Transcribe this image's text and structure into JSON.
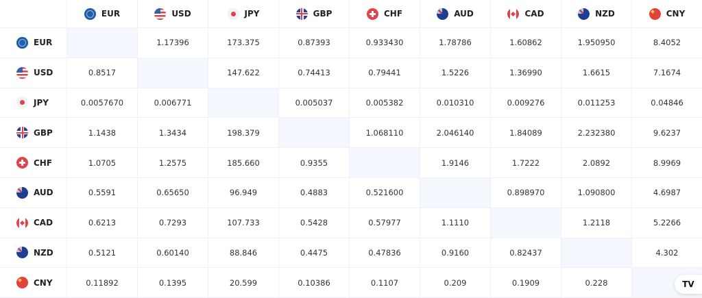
{
  "currencies": [
    "EUR",
    "USD",
    "JPY",
    "GBP",
    "CHF",
    "AUD",
    "CAD",
    "NZD",
    "CNY"
  ],
  "rows": [
    [
      "",
      "1.17396",
      "173.375",
      "0.87393",
      "0.933430",
      "1.78786",
      "1.60862",
      "1.950950",
      "8.4052"
    ],
    [
      "0.8517",
      "",
      "147.622",
      "0.74413",
      "0.79441",
      "1.5226",
      "1.36990",
      "1.6615",
      "7.1674"
    ],
    [
      "0.0057670",
      "0.006771",
      "",
      "0.005037",
      "0.005382",
      "0.010310",
      "0.009276",
      "0.011253",
      "0.04846"
    ],
    [
      "1.1438",
      "1.3434",
      "198.379",
      "",
      "1.068110",
      "2.046140",
      "1.84089",
      "2.232380",
      "9.6237"
    ],
    [
      "1.0705",
      "1.2575",
      "185.660",
      "0.9355",
      "",
      "1.9146",
      "1.7222",
      "2.0892",
      "8.9969"
    ],
    [
      "0.5591",
      "0.65650",
      "96.949",
      "0.4883",
      "0.521600",
      "",
      "0.898970",
      "1.090800",
      "4.6987"
    ],
    [
      "0.6213",
      "0.7293",
      "107.733",
      "0.5428",
      "0.57977",
      "1.1110",
      "",
      "1.2118",
      "5.2266"
    ],
    [
      "0.5121",
      "0.60140",
      "88.846",
      "0.4475",
      "0.47836",
      "0.9160",
      "0.82437",
      "",
      "4.302"
    ],
    [
      "0.11892",
      "0.1395",
      "20.599",
      "0.10386",
      "0.1107",
      "0.209",
      "0.1909",
      "0.228",
      ""
    ]
  ],
  "flags": {
    "EUR": "eu-flag-icon",
    "USD": "us-flag-icon",
    "JPY": "japan-flag-icon",
    "GBP": "uk-flag-icon",
    "CHF": "swiss-flag-icon",
    "AUD": "australia-flag-icon",
    "CAD": "canada-flag-icon",
    "NZD": "new-zealand-flag-icon",
    "CNY": "china-flag-icon"
  },
  "colors": {
    "diagonal": "#f4f7fd",
    "grid": "#f0f1f4"
  },
  "logo": "TV"
}
